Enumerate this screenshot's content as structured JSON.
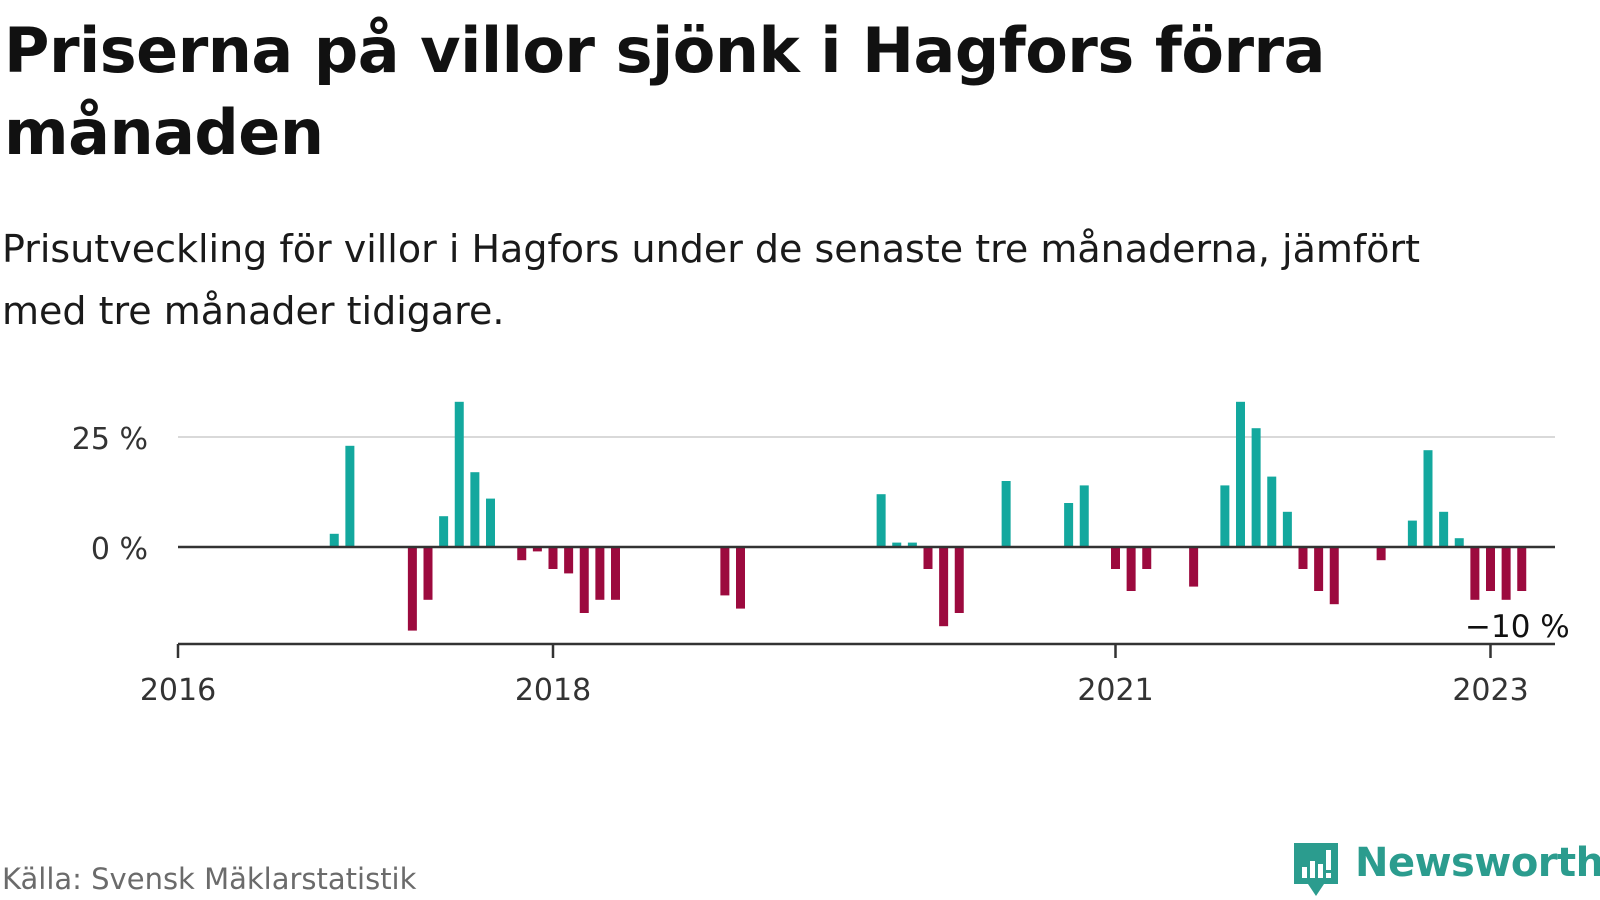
{
  "title": "Priserna på villor sjönk i Hagfors förra månaden",
  "subtitle": "Prisutveckling för villor i Hagfors under de senaste tre månaderna, jämfört med tre månader tidigare.",
  "source": "Källa: Svensk Mäklarstatistik",
  "brand": "Newsworthy",
  "colors": {
    "positive": "#13a89e",
    "negative": "#9c0a3e",
    "grid": "#d9d9d9",
    "axis": "#333333",
    "brand": "#2b9c8e"
  },
  "chart_data": {
    "type": "bar",
    "title": "Priserna på villor sjönk i Hagfors förra månaden",
    "subtitle": "Prisutveckling för villor i Hagfors under de senaste tre månaderna, jämfört med tre månader tidigare.",
    "y_unit": "%",
    "ylim": [
      -22,
      36
    ],
    "y_ticks": [
      0,
      25
    ],
    "y_tick_labels": [
      "0 %",
      "25 %"
    ],
    "x_ticks": [
      "2016-01",
      "2018-01",
      "2021-01",
      "2023-01"
    ],
    "x_tick_labels": [
      "2016",
      "2018",
      "2021",
      "2023"
    ],
    "grid": true,
    "end_label": "−10 %",
    "series": [
      {
        "points": [
          {
            "x": "2016-11",
            "y": 3
          },
          {
            "x": "2016-12",
            "y": 23
          },
          {
            "x": "2017-04",
            "y": -19
          },
          {
            "x": "2017-05",
            "y": -12
          },
          {
            "x": "2017-06",
            "y": 7
          },
          {
            "x": "2017-07",
            "y": 33
          },
          {
            "x": "2017-08",
            "y": 17
          },
          {
            "x": "2017-09",
            "y": 11
          },
          {
            "x": "2017-11",
            "y": -3
          },
          {
            "x": "2017-12",
            "y": -1
          },
          {
            "x": "2018-01",
            "y": -5
          },
          {
            "x": "2018-02",
            "y": -6
          },
          {
            "x": "2018-03",
            "y": -15
          },
          {
            "x": "2018-04",
            "y": -12
          },
          {
            "x": "2018-05",
            "y": -12
          },
          {
            "x": "2018-12",
            "y": -11
          },
          {
            "x": "2019-01",
            "y": -14
          },
          {
            "x": "2019-10",
            "y": 12
          },
          {
            "x": "2019-11",
            "y": 1
          },
          {
            "x": "2019-12",
            "y": 1
          },
          {
            "x": "2020-01",
            "y": -5
          },
          {
            "x": "2020-02",
            "y": -18
          },
          {
            "x": "2020-03",
            "y": -15
          },
          {
            "x": "2020-06",
            "y": 15
          },
          {
            "x": "2020-10",
            "y": 10
          },
          {
            "x": "2020-11",
            "y": 14
          },
          {
            "x": "2021-01",
            "y": -5
          },
          {
            "x": "2021-02",
            "y": -10
          },
          {
            "x": "2021-03",
            "y": -5
          },
          {
            "x": "2021-06",
            "y": -9
          },
          {
            "x": "2021-08",
            "y": 14
          },
          {
            "x": "2021-09",
            "y": 33
          },
          {
            "x": "2021-10",
            "y": 27
          },
          {
            "x": "2021-11",
            "y": 16
          },
          {
            "x": "2021-12",
            "y": 8
          },
          {
            "x": "2022-01",
            "y": -5
          },
          {
            "x": "2022-02",
            "y": -10
          },
          {
            "x": "2022-03",
            "y": -13
          },
          {
            "x": "2022-06",
            "y": -3
          },
          {
            "x": "2022-08",
            "y": 6
          },
          {
            "x": "2022-09",
            "y": 22
          },
          {
            "x": "2022-10",
            "y": 8
          },
          {
            "x": "2022-11",
            "y": 2
          },
          {
            "x": "2022-12",
            "y": -12
          },
          {
            "x": "2023-01",
            "y": -10
          },
          {
            "x": "2023-02",
            "y": -12
          },
          {
            "x": "2023-03",
            "y": -10
          }
        ]
      }
    ]
  }
}
